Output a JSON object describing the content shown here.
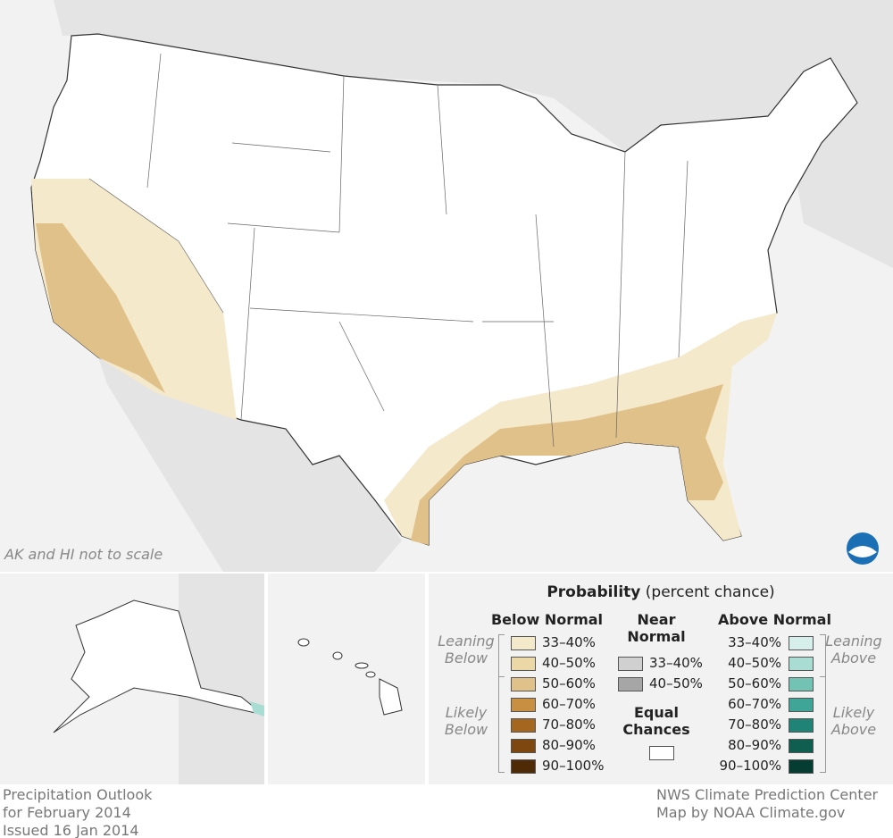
{
  "map": {
    "note": "AK and HI not to scale"
  },
  "legend": {
    "title": "Probability",
    "subtitle": "(percent chance)",
    "below": {
      "heading": "Below Normal",
      "leaning": "Leaning Below",
      "likely": "Likely Below",
      "items": [
        {
          "label": "33–40%",
          "color": "#f5e9cb"
        },
        {
          "label": "40–50%",
          "color": "#ecd7a6"
        },
        {
          "label": "50–60%",
          "color": "#e0c189"
        },
        {
          "label": "60–70%",
          "color": "#c88f43"
        },
        {
          "label": "70–80%",
          "color": "#a5661f"
        },
        {
          "label": "80–90%",
          "color": "#7e4710"
        },
        {
          "label": "90–100%",
          "color": "#4e2a07"
        }
      ]
    },
    "near": {
      "heading": "Near Normal",
      "items": [
        {
          "label": "33–40%",
          "color": "#d0d0d0"
        },
        {
          "label": "40–50%",
          "color": "#a6a6a6"
        }
      ]
    },
    "equal": {
      "label": "Equal Chances",
      "color": "#ffffff"
    },
    "above": {
      "heading": "Above Normal",
      "leaning": "Leaning Above",
      "likely": "Likely Above",
      "items": [
        {
          "label": "33–40%",
          "color": "#d6efea"
        },
        {
          "label": "40–50%",
          "color": "#a9ddd3"
        },
        {
          "label": "50–60%",
          "color": "#73c3b5"
        },
        {
          "label": "60–70%",
          "color": "#3fa597"
        },
        {
          "label": "70–80%",
          "color": "#1f8376"
        },
        {
          "label": "80–90%",
          "color": "#0f5e50"
        },
        {
          "label": "90–100%",
          "color": "#063d33"
        }
      ]
    }
  },
  "footer": {
    "left": [
      "Precipitation Outlook",
      "for February 2014",
      "Issued 16 Jan 2014"
    ],
    "right": [
      "NWS Climate Prediction Center",
      "Map by NOAA Climate.gov"
    ]
  }
}
